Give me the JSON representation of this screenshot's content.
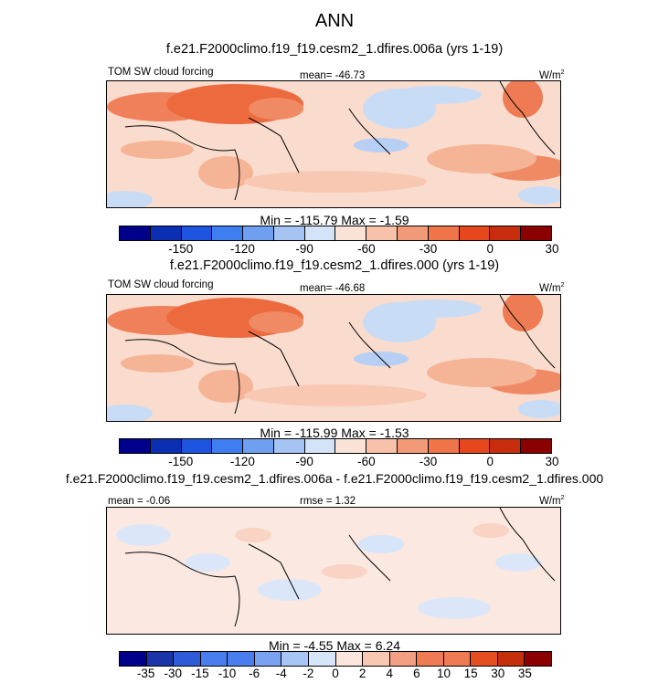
{
  "page": {
    "season": "ANN"
  },
  "colors": {
    "abs_palette": [
      "#00008b",
      "#0a2fb3",
      "#1e55e0",
      "#3f7ef0",
      "#6e9ff0",
      "#a5c3f3",
      "#d4e3f7",
      "#fae2d7",
      "#f8c2aa",
      "#f29a78",
      "#ef7448",
      "#e6471c",
      "#c82d0e",
      "#8b0000"
    ],
    "diff_palette": [
      "#00008b",
      "#1a35a8",
      "#2f5bd8",
      "#4a7ded",
      "#79a3f2",
      "#a7c6f6",
      "#d6e5f9",
      "#fbe5dc",
      "#f9c8b3",
      "#f3a082",
      "#ee7b53",
      "#e44e21",
      "#c5300c",
      "#8b0000"
    ]
  },
  "panels": [
    {
      "case_title": "f.e21.F2000climo.f19_f19.cesm2_1.dfires.006a (yrs 1-19)",
      "left_label": "TOM SW cloud forcing",
      "center_label": "mean= -46.73",
      "units": "W/m",
      "units_sup": "2",
      "minmax": "Min = -115.79 Max =  -1.59",
      "colorbar_ticks": [
        "-150",
        "-120",
        "-90",
        "-60",
        "-30",
        "0",
        "30"
      ]
    },
    {
      "case_title": "f.e21.F2000climo.f19_f19.cesm2_1.dfires.000 (yrs 1-19)",
      "left_label": "TOM SW cloud forcing",
      "center_label": "mean= -46.68",
      "units": "W/m",
      "units_sup": "2",
      "minmax": "Min = -115.99 Max =  -1.53",
      "colorbar_ticks": [
        "-150",
        "-120",
        "-90",
        "-60",
        "-30",
        "0",
        "30"
      ]
    },
    {
      "case_title": "f.e21.F2000climo.f19_f19.cesm2_1.dfires.006a - f.e21.F2000climo.f19_f19.cesm2_1.dfires.000",
      "left_label": "mean =  -0.06",
      "center_label": "rmse =  1.32",
      "units": "W/m",
      "units_sup": "2",
      "minmax": "Min =  -4.55 Max =   6.24",
      "colorbar_ticks": [
        "-35",
        "-30",
        "-15",
        "-10",
        "-6",
        "-4",
        "-2",
        "0",
        "2",
        "4",
        "6",
        "10",
        "15",
        "30",
        "35"
      ]
    }
  ],
  "chart_data": [
    {
      "type": "heatmap",
      "title": "f.e21.F2000climo.f19_f19.cesm2_1.dfires.006a (yrs 1-19)",
      "variable": "TOM SW cloud forcing",
      "units": "W/m2",
      "mean": -46.73,
      "min": -115.79,
      "max": -1.59,
      "colorbar_levels": [
        -150,
        -120,
        -90,
        -60,
        -30,
        0,
        30
      ]
    },
    {
      "type": "heatmap",
      "title": "f.e21.F2000climo.f19_f19.cesm2_1.dfires.000 (yrs 1-19)",
      "variable": "TOM SW cloud forcing",
      "units": "W/m2",
      "mean": -46.68,
      "min": -115.99,
      "max": -1.53,
      "colorbar_levels": [
        -150,
        -120,
        -90,
        -60,
        -30,
        0,
        30
      ]
    },
    {
      "type": "heatmap",
      "title": "f.e21.F2000climo.f19_f19.cesm2_1.dfires.006a - f.e21.F2000climo.f19_f19.cesm2_1.dfires.000",
      "variable": "difference",
      "units": "W/m2",
      "mean": -0.06,
      "rmse": 1.32,
      "min": -4.55,
      "max": 6.24,
      "colorbar_levels": [
        -35,
        -30,
        -15,
        -10,
        -6,
        -4,
        -2,
        0,
        2,
        4,
        6,
        10,
        15,
        30,
        35
      ]
    }
  ]
}
